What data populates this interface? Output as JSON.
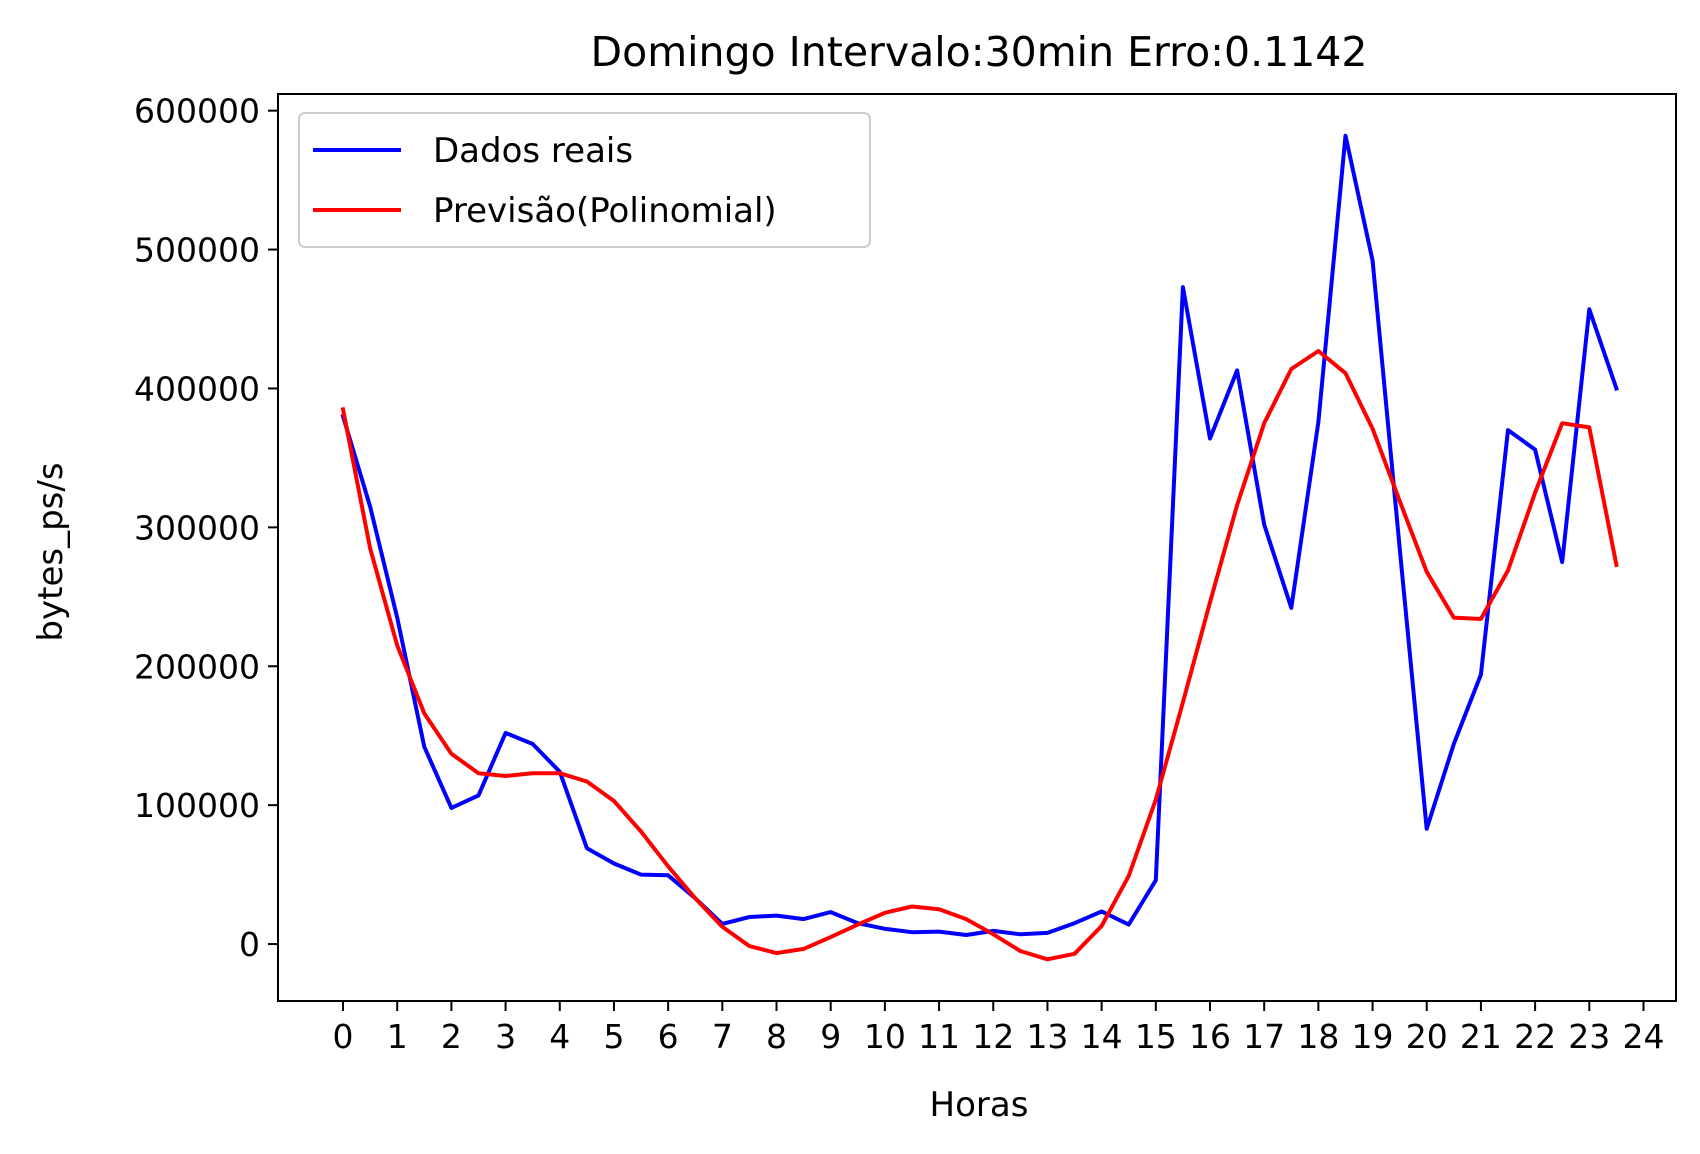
{
  "chart_data": {
    "type": "line",
    "title": "Domingo Intervalo:30min Erro:0.1142",
    "xlabel": "Horas",
    "ylabel": "bytes_ps/s",
    "xlim": [
      -1.2,
      24.6
    ],
    "ylim": [
      -41000,
      612000
    ],
    "x_ticks": [
      0,
      1,
      2,
      3,
      4,
      5,
      6,
      7,
      8,
      9,
      10,
      11,
      12,
      13,
      14,
      15,
      16,
      17,
      18,
      19,
      20,
      21,
      22,
      23,
      24
    ],
    "x_tick_labels": [
      "0",
      "1",
      "2",
      "3",
      "4",
      "5",
      "6",
      "7",
      "8",
      "9",
      "10",
      "11",
      "12",
      "13",
      "14",
      "15",
      "16",
      "17",
      "18",
      "19",
      "20",
      "21",
      "22",
      "23",
      "24"
    ],
    "y_ticks": [
      0,
      100000,
      200000,
      300000,
      400000,
      500000,
      600000
    ],
    "y_tick_labels": [
      "0",
      "100000",
      "200000",
      "300000",
      "400000",
      "500000",
      "600000"
    ],
    "grid": false,
    "legend": "upper-left",
    "x": [
      0,
      0.5,
      1,
      1.5,
      2,
      2.5,
      3,
      3.5,
      4,
      4.5,
      5,
      5.5,
      6,
      6.5,
      7,
      7.5,
      8,
      8.5,
      9,
      9.5,
      10,
      10.5,
      11,
      11.5,
      12,
      12.5,
      13,
      13.5,
      14,
      14.5,
      15,
      15.5,
      16,
      16.5,
      17,
      17.5,
      18,
      18.5,
      19,
      19.5,
      20,
      20.5,
      21,
      21.5,
      22,
      22.5,
      23,
      23.5
    ],
    "series": [
      {
        "name": "Dados reais",
        "color": "#0000ff",
        "values": [
          380000,
          315000,
          235000,
          142000,
          98000,
          107000,
          152000,
          144000,
          124000,
          69000,
          58000,
          50000,
          49500,
          33000,
          14500,
          19500,
          20500,
          18000,
          23000,
          15000,
          11000,
          8500,
          9000,
          6500,
          9500,
          7000,
          8000,
          15000,
          23500,
          14000,
          46000,
          473000,
          364000,
          413000,
          302000,
          242000,
          376000,
          582000,
          492000,
          285000,
          83000,
          144000,
          194000,
          370000,
          356000,
          275000,
          457000,
          400000
        ]
      },
      {
        "name": "Previsão(Polinomial)",
        "color": "#ff0000",
        "values": [
          385000,
          285000,
          215000,
          166000,
          137000,
          123000,
          121000,
          123000,
          123000,
          117000,
          103000,
          81000,
          56000,
          33000,
          12500,
          -1500,
          -6500,
          -3500,
          5000,
          14000,
          22500,
          27000,
          25000,
          18000,
          7000,
          -5000,
          -11000,
          -7000,
          13000,
          49000,
          104000,
          174000,
          246000,
          316000,
          375000,
          414000,
          427000,
          411000,
          371000,
          319000,
          268000,
          235000,
          234000,
          269000,
          325000,
          375000,
          372000,
          273000
        ]
      }
    ]
  }
}
